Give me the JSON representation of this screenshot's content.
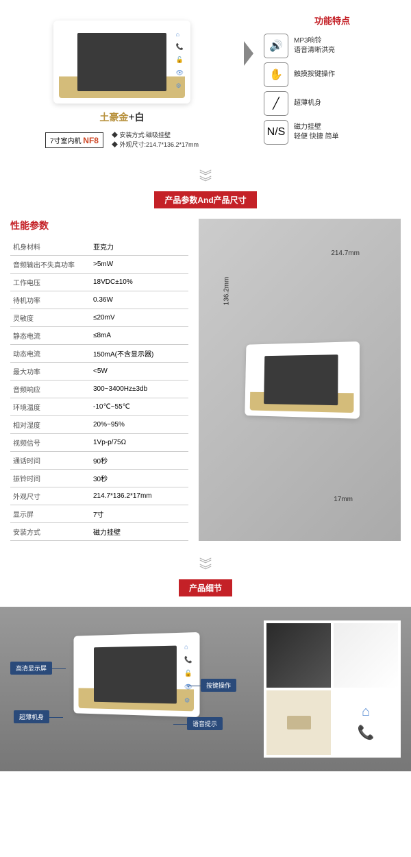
{
  "section1": {
    "product_name_gold": "土豪金",
    "product_name_plus": "+",
    "product_name_white": "白",
    "model_prefix": "7寸室内机",
    "model_number": "NF8",
    "install_label": "安装方式:磁吸挂壁",
    "size_label": "外观尺寸:214.7*136.2*17mm",
    "features_title": "功能特点",
    "features": [
      {
        "icon": "🔊",
        "line1": "MP3响铃",
        "line2": "语音清晰洪亮"
      },
      {
        "icon": "✋",
        "line1": "触摸按键操作",
        "line2": ""
      },
      {
        "icon": "╱",
        "line1": "超薄机身",
        "line2": ""
      },
      {
        "icon": "N/S",
        "line1": "磁力挂壁",
        "line2": "轻便 快捷 简单"
      }
    ]
  },
  "section2": {
    "title": "产品参数And产品尺寸",
    "spec_title": "性能参数",
    "specs": [
      {
        "k": "机身材料",
        "v": "亚克力"
      },
      {
        "k": "音频输出不失真功率",
        "v": ">5mW"
      },
      {
        "k": "工作电压",
        "v": "18VDC±10%"
      },
      {
        "k": "待机功率",
        "v": "0.36W"
      },
      {
        "k": "灵敏度",
        "v": "≤20mV"
      },
      {
        "k": "静态电流",
        "v": "≤8mA"
      },
      {
        "k": "动态电流",
        "v": "150mA(不含显示器)"
      },
      {
        "k": "最大功率",
        "v": "<5W"
      },
      {
        "k": "音频响应",
        "v": "300~3400Hz±3db"
      },
      {
        "k": "环境温度",
        "v": "-10℃~55℃"
      },
      {
        "k": "相对湿度",
        "v": "20%~95%"
      },
      {
        "k": "视频信号",
        "v": "1Vp-p/75Ω"
      },
      {
        "k": "通话时间",
        "v": "90秒"
      },
      {
        "k": "振铃时间",
        "v": "30秒"
      },
      {
        "k": "外观尺寸",
        "v": "214.7*136.2*17mm"
      },
      {
        "k": "显示屏",
        "v": "7寸"
      },
      {
        "k": "安装方式",
        "v": "磁力挂壁"
      }
    ],
    "dim_w": "214.7mm",
    "dim_h": "136.2mm",
    "dim_d": "17mm"
  },
  "section3": {
    "title": "产品细节",
    "callouts": {
      "c1": "高清显示屏",
      "c2": "超薄机身",
      "c3": "按键操作",
      "c4": "语音提示"
    }
  },
  "colors": {
    "accent_red": "#c42127",
    "gold": "#d4bc7a",
    "icon_blue": "#5b8fd4",
    "callout_bg": "#2a4a7a"
  }
}
